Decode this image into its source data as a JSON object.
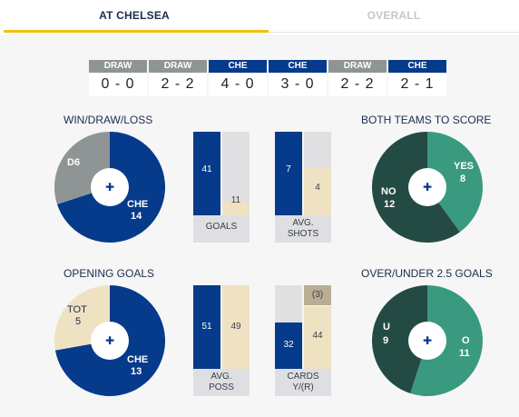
{
  "tabs": [
    {
      "label": "AT CHELSEA",
      "active": true
    },
    {
      "label": "OVERALL",
      "active": false
    }
  ],
  "results": [
    {
      "label": "DRAW",
      "type": "draw",
      "score": "0 - 0"
    },
    {
      "label": "DRAW",
      "type": "draw",
      "score": "2 - 2"
    },
    {
      "label": "CHE",
      "type": "che",
      "score": "4 - 0"
    },
    {
      "label": "CHE",
      "type": "che",
      "score": "3 - 0"
    },
    {
      "label": "DRAW",
      "type": "draw",
      "score": "2 - 2"
    },
    {
      "label": "CHE",
      "type": "che",
      "score": "2 - 1"
    }
  ],
  "win_draw_loss": {
    "title": "WIN/DRAW/LOSS",
    "slices": [
      {
        "name": "CHE",
        "value": 14,
        "color": "#063a8a"
      },
      {
        "name": "D",
        "value": 6,
        "color": "#8f9594"
      }
    ],
    "label_che": "CHE",
    "value_che": "14",
    "label_draw": "D6"
  },
  "goals": {
    "home": "41",
    "away": "11",
    "home_value": 41,
    "away_value": 11,
    "caption": "GOALS"
  },
  "avg_shots": {
    "home": "7",
    "away": "4",
    "home_value": 7,
    "away_value": 4,
    "caption_line1": "AVG.",
    "caption_line2": "SHOTS"
  },
  "btts": {
    "title": "BOTH TEAMS TO SCORE",
    "slices": [
      {
        "name": "YES",
        "value": 8,
        "color": "#3a9a80"
      },
      {
        "name": "NO",
        "value": 12,
        "color": "#244a44"
      }
    ],
    "yes_label": "YES",
    "yes_value": "8",
    "no_label": "NO",
    "no_value": "12"
  },
  "opening_goals": {
    "title": "OPENING GOALS",
    "slices": [
      {
        "name": "CHE",
        "value": 13,
        "color": "#063a8a"
      },
      {
        "name": "TOT",
        "value": 5,
        "color": "#efe2c3"
      }
    ],
    "tot_label": "TOT",
    "tot_value": "5",
    "che_label": "CHE",
    "che_value": "13"
  },
  "avg_poss": {
    "home": "51",
    "away": "49",
    "home_value": 51,
    "away_value": 49,
    "caption_line1": "AVG.",
    "caption_line2": "POSS"
  },
  "cards": {
    "home": "32",
    "away": "44",
    "away_red": "(3)",
    "home_value": 32,
    "away_value": 44,
    "away_red_value": 3,
    "caption_line1": "CARDS",
    "caption_line2": "Y/(R)"
  },
  "over_under": {
    "title": "OVER/UNDER 2.5 GOALS",
    "slices": [
      {
        "name": "O",
        "value": 11,
        "color": "#3a9a80"
      },
      {
        "name": "U",
        "value": 9,
        "color": "#244a44"
      }
    ],
    "u_label": "U",
    "u_value": "9",
    "o_label": "O",
    "o_value": "11"
  }
}
